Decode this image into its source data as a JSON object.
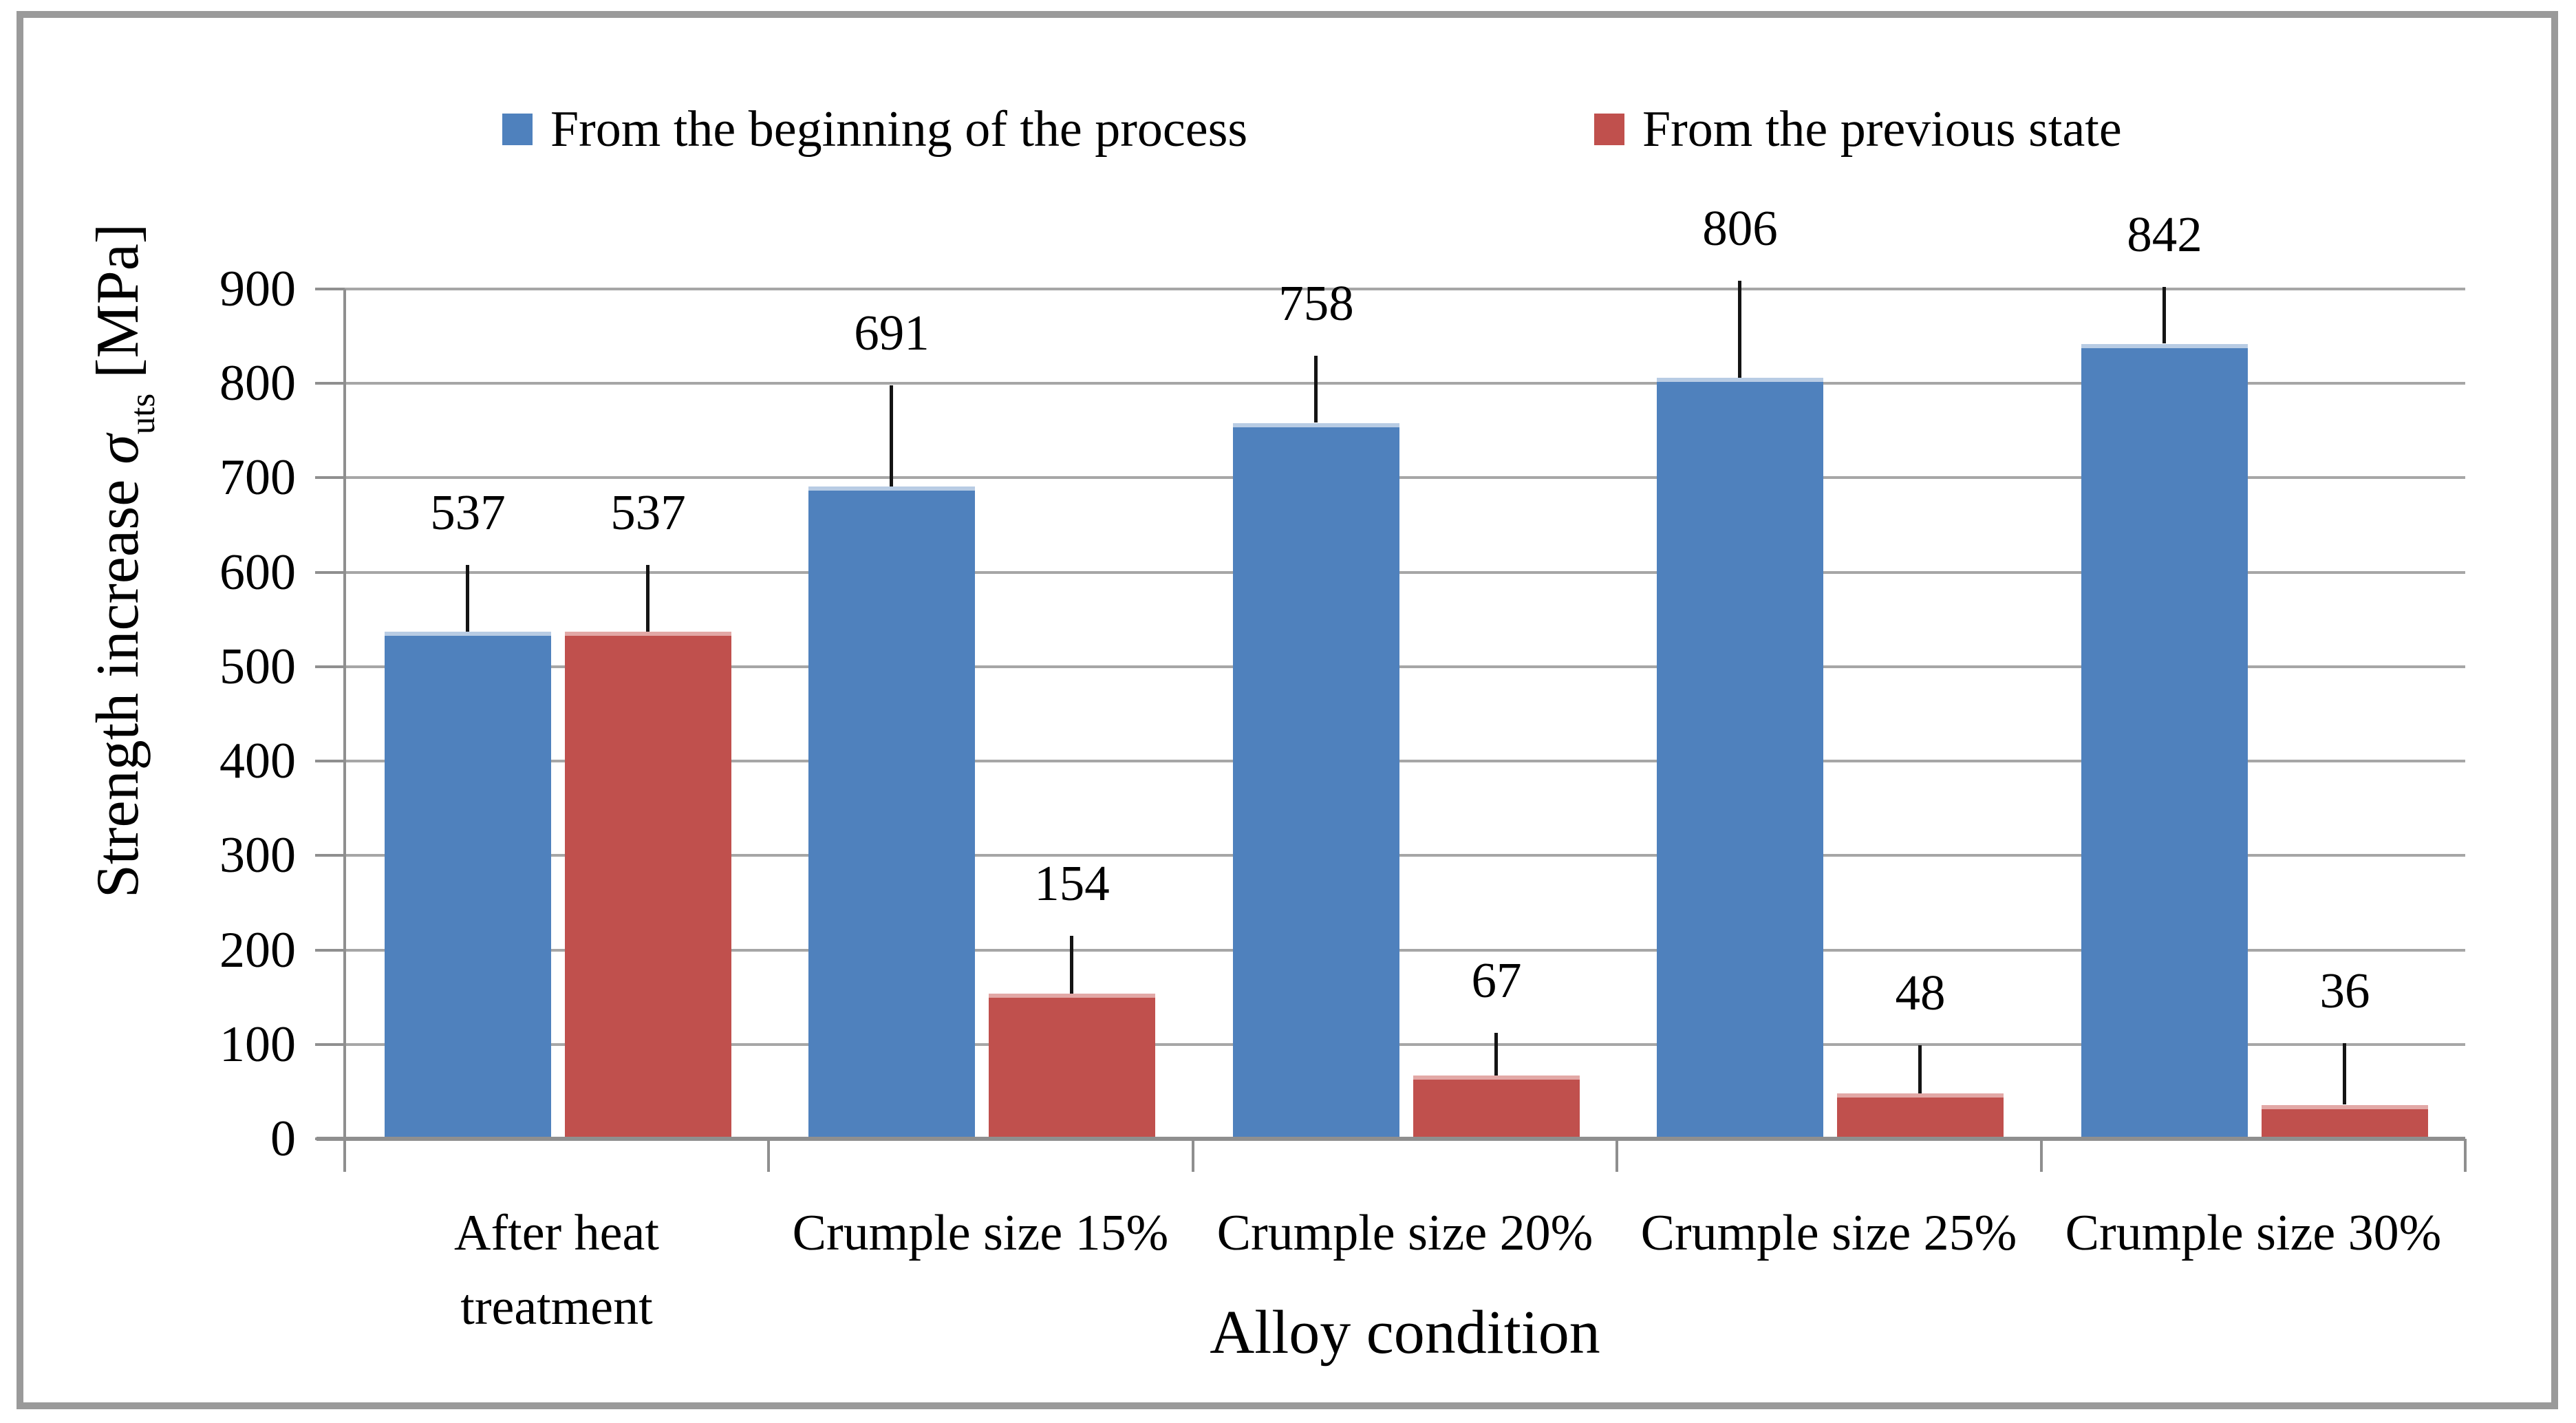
{
  "figure": {
    "background": "#ffffff",
    "border_color": "#9a9a9a"
  },
  "legend": {
    "items": [
      {
        "label": "From the beginning of the process",
        "color": "#4F81BD"
      },
      {
        "label": "From the previous state",
        "color": "#C0504D"
      }
    ]
  },
  "y_axis": {
    "title_prefix": "Strength increase ",
    "title_sigma": "σ",
    "title_sub": "uts",
    "title_suffix": " [MPa]",
    "tick_labels": [
      "0",
      "100",
      "200",
      "300",
      "400",
      "500",
      "600",
      "700",
      "800",
      "900"
    ]
  },
  "x_axis": {
    "title": "Alloy condition"
  },
  "colors": {
    "gridline": "#a6a6a6",
    "axis": "#8f8f8f",
    "error_bar": "#141414",
    "text": "#000000"
  },
  "chart_data": {
    "type": "bar",
    "title": "",
    "xlabel": "Alloy condition",
    "ylabel": "Strength increase σuts [MPa]",
    "categories": [
      "After heat\ntreatment",
      "Crumple size 15%",
      "Crumple size 20%",
      "Crumple size 25%",
      "Crumple size 30%"
    ],
    "series": [
      {
        "name": "From the beginning of the process",
        "color": "#4F81BD",
        "edge_color": "#b8cce4",
        "values": [
          537,
          691,
          758,
          806,
          842
        ],
        "errors_up": [
          71,
          107,
          71,
          103,
          60
        ]
      },
      {
        "name": "From the previous state",
        "color": "#C0504D",
        "edge_color": "#e2a8a6",
        "values": [
          537,
          154,
          67,
          48,
          36
        ],
        "errors_up": [
          71,
          61,
          45,
          51,
          65
        ]
      }
    ],
    "ylim": [
      0,
      900
    ],
    "ytick_step": 100,
    "grid": "horizontal",
    "legend_position": "top",
    "value_labels": true,
    "error_bars": "upward-only-no-caps"
  }
}
